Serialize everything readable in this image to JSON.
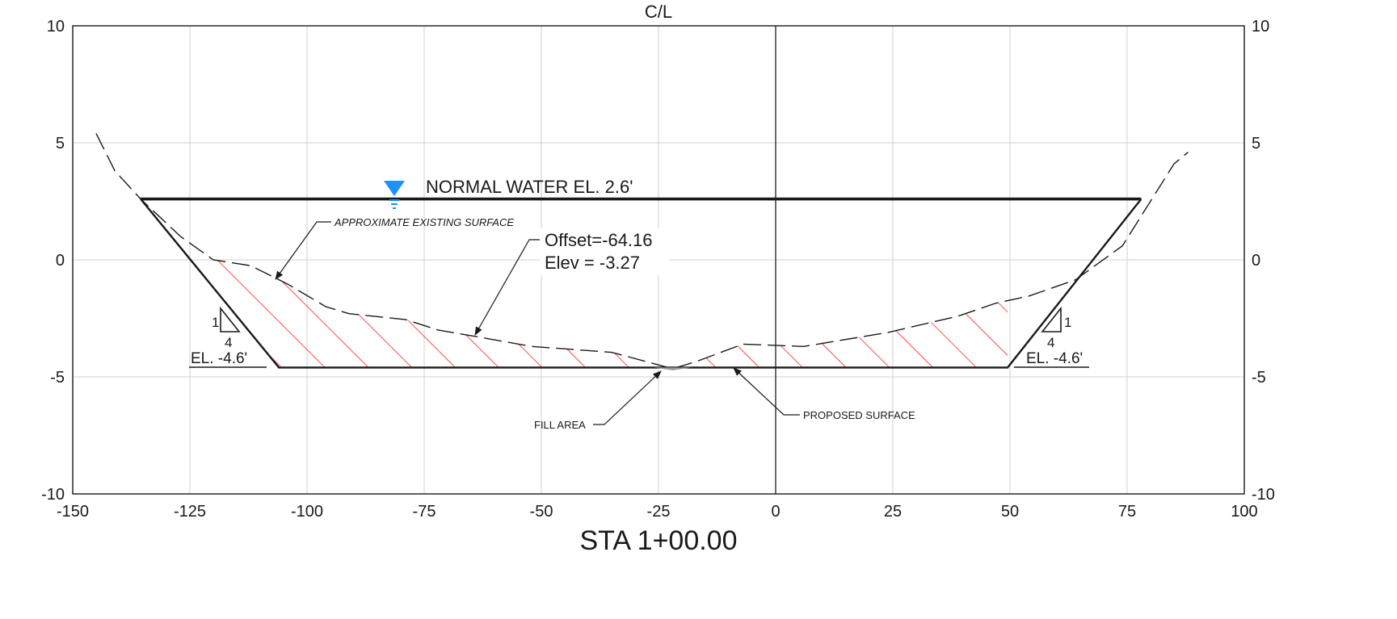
{
  "drawing": {
    "centerline_label": "C/L",
    "station_label": "STA 1+00.00",
    "x_ticks": [
      "-150",
      "-125",
      "-100",
      "-75",
      "-50",
      "-25",
      "0",
      "25",
      "50",
      "75",
      "100"
    ],
    "y_ticks_left": [
      "10",
      "5",
      "0",
      "-5",
      "-10"
    ],
    "y_ticks_right": [
      "10",
      "5",
      "0",
      "-5",
      "-10"
    ],
    "x_range": [
      -150,
      100
    ],
    "y_range": [
      -10,
      10
    ],
    "grid": true,
    "colors": {
      "hatch": "#ff0000",
      "water_symbol": "#1e90ff",
      "line": "#1a1a1a",
      "grid": "#d0d0d0",
      "fill_area": "#9a9a9a"
    },
    "water": {
      "label": "NORMAL WATER EL. 2.6'",
      "elevation": 2.6,
      "offset_range": [
        -135.5,
        78
      ]
    },
    "proposed_surface": {
      "label": "PROPOSED SURFACE",
      "points": [
        [
          -135.5,
          2.6
        ],
        [
          -106,
          -4.6
        ],
        [
          49.5,
          -4.6
        ],
        [
          78,
          2.6
        ]
      ]
    },
    "existing_surface": {
      "label": "APPROXIMATE EXISTING SURFACE",
      "points": [
        [
          -145,
          5.4
        ],
        [
          -141,
          3.8
        ],
        [
          -135.5,
          2.6
        ],
        [
          -127,
          1.0
        ],
        [
          -120,
          0.0
        ],
        [
          -112,
          -0.25
        ],
        [
          -104,
          -1.05
        ],
        [
          -96,
          -2.0
        ],
        [
          -91,
          -2.3
        ],
        [
          -79,
          -2.55
        ],
        [
          -72,
          -3.0
        ],
        [
          -64.16,
          -3.27
        ],
        [
          -52,
          -3.7
        ],
        [
          -35,
          -3.95
        ],
        [
          -22,
          -4.65
        ],
        [
          -17,
          -4.35
        ],
        [
          -7,
          -3.6
        ],
        [
          6,
          -3.7
        ],
        [
          24,
          -3.1
        ],
        [
          39,
          -2.4
        ],
        [
          47,
          -1.85
        ],
        [
          54,
          -1.55
        ],
        [
          64,
          -0.85
        ],
        [
          74,
          0.6
        ],
        [
          85,
          4.1
        ],
        [
          88,
          4.6
        ]
      ]
    },
    "fill_area": {
      "label": "FILL AREA"
    },
    "point_label": {
      "offset": "Offset=-64.16",
      "elev": "Elev = -3.27"
    },
    "left_slope": {
      "rise": "1",
      "run": "4",
      "elevation_label": "EL. -4.6'"
    },
    "right_slope": {
      "rise": "1",
      "run": "4",
      "elevation_label": "EL. -4.6'"
    }
  }
}
